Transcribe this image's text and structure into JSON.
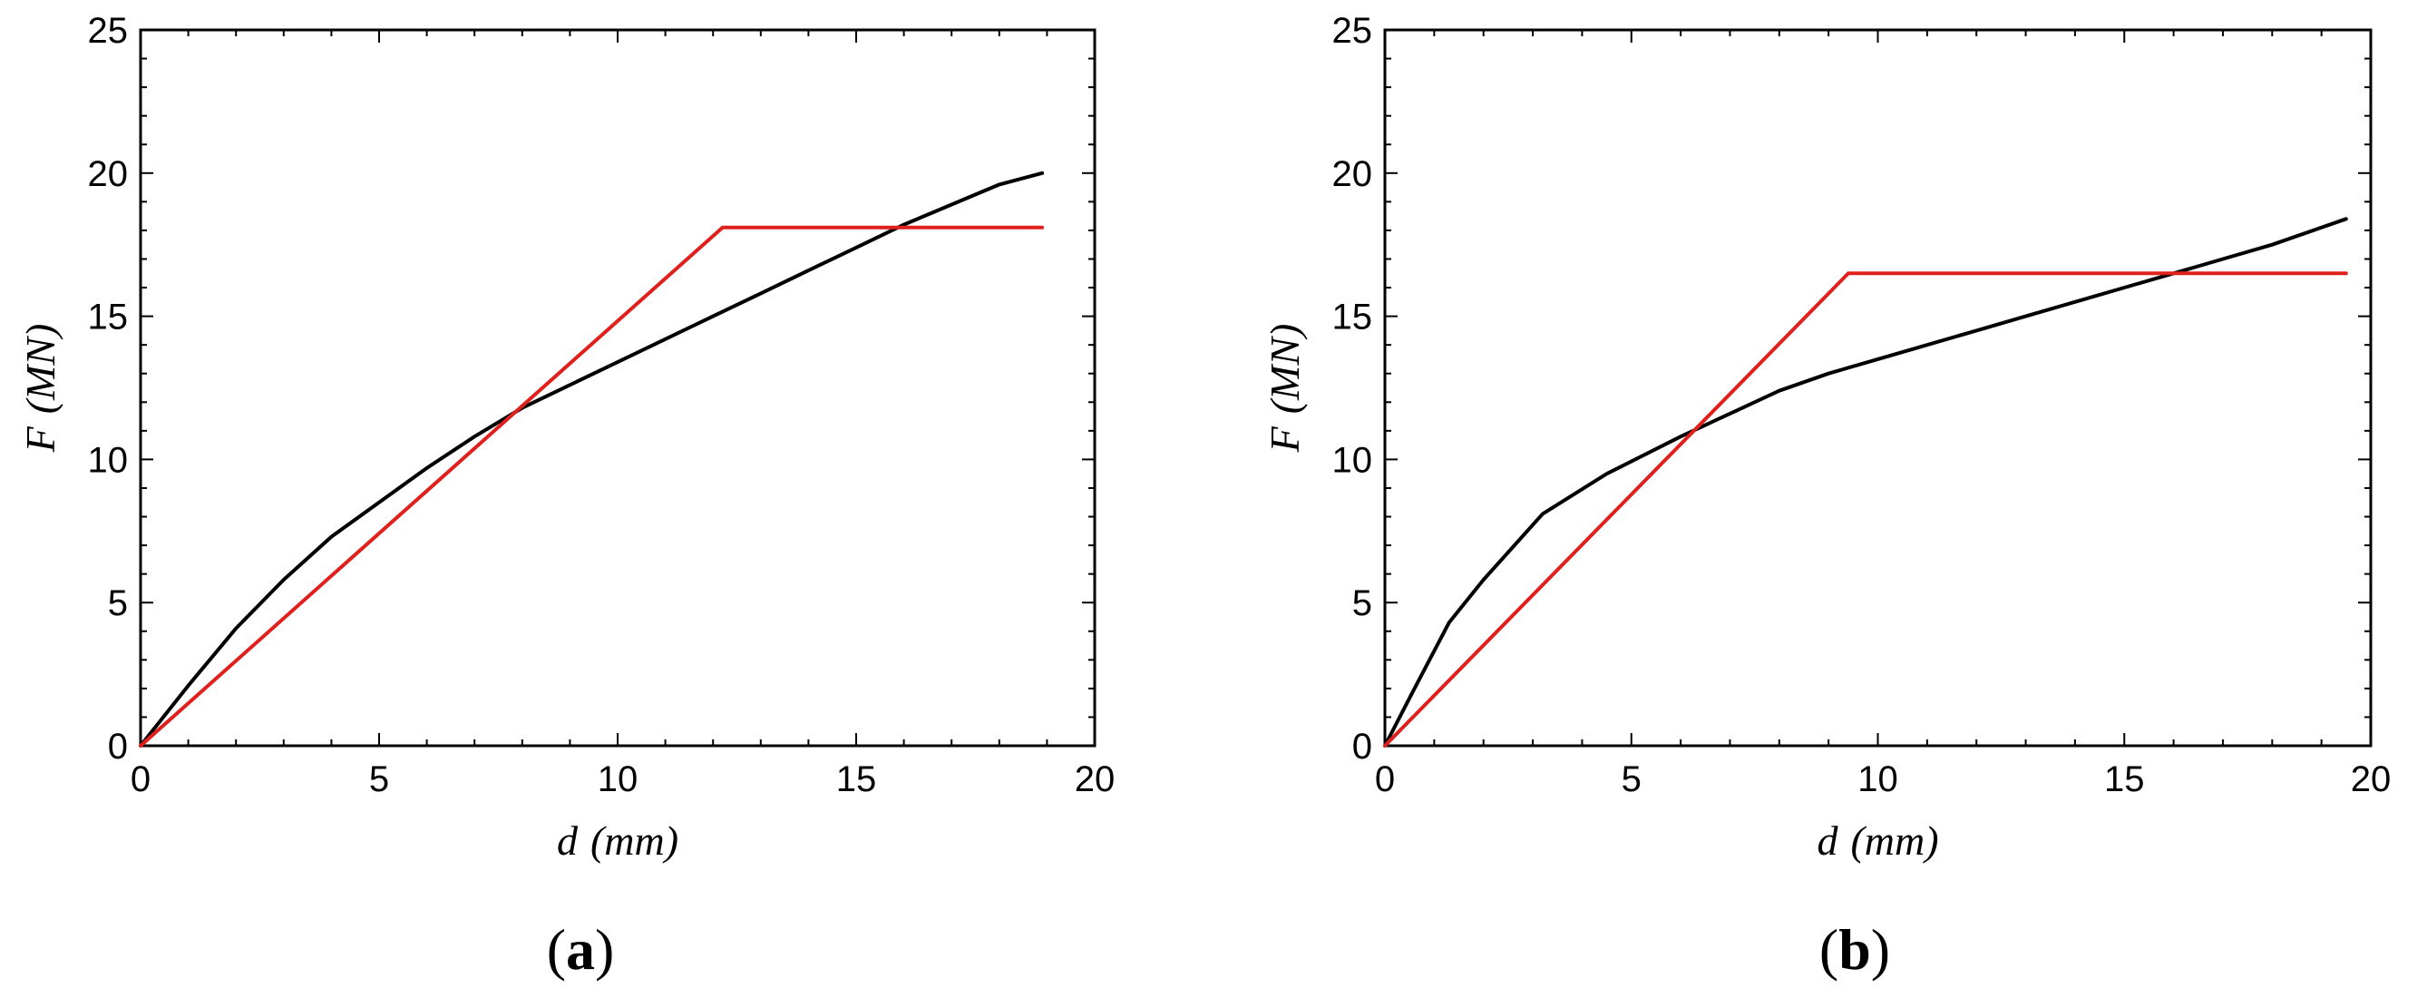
{
  "chart_data": [
    {
      "type": "line",
      "panel_label": {
        "open": "(",
        "letter": "a",
        "close": ")"
      },
      "xlabel": {
        "var": "d",
        "unit": "(mm)"
      },
      "ylabel": {
        "var": "F",
        "unit": "(MN)"
      },
      "xlim": [
        0,
        20
      ],
      "ylim": [
        0,
        25
      ],
      "xticks": [
        0,
        5,
        10,
        15,
        20
      ],
      "yticks": [
        0,
        5,
        10,
        15,
        20,
        25
      ],
      "grid": false,
      "series": [
        {
          "color": "#000000",
          "x": [
            0,
            1,
            2,
            3,
            4,
            5,
            6,
            7,
            8,
            9,
            10,
            11,
            12,
            13,
            14,
            15,
            16,
            17,
            18,
            18.9
          ],
          "y": [
            0,
            2.1,
            4.1,
            5.8,
            7.3,
            8.5,
            9.7,
            10.8,
            11.8,
            12.6,
            13.4,
            14.2,
            15.0,
            15.8,
            16.6,
            17.4,
            18.2,
            18.9,
            19.6,
            20.0
          ]
        },
        {
          "color": "#e0201c",
          "x": [
            0,
            12.2,
            18.9
          ],
          "y": [
            0,
            18.1,
            18.1
          ]
        }
      ]
    },
    {
      "type": "line",
      "panel_label": {
        "open": "(",
        "letter": "b",
        "close": ")"
      },
      "xlabel": {
        "var": "d",
        "unit": "(mm)"
      },
      "ylabel": {
        "var": "F",
        "unit": "(MN)"
      },
      "xlim": [
        0,
        20
      ],
      "ylim": [
        0,
        25
      ],
      "xticks": [
        0,
        5,
        10,
        15,
        20
      ],
      "yticks": [
        0,
        5,
        10,
        15,
        20,
        25
      ],
      "grid": false,
      "series": [
        {
          "color": "#000000",
          "x": [
            0,
            0.6,
            1.3,
            2,
            3.2,
            4.5,
            6,
            7,
            8,
            9,
            10,
            11,
            12,
            13,
            14,
            15,
            16,
            17,
            18,
            19.5
          ],
          "y": [
            0,
            2.0,
            4.3,
            5.8,
            8.1,
            9.5,
            10.8,
            11.6,
            12.4,
            13.0,
            13.5,
            14.0,
            14.5,
            15.0,
            15.5,
            16.0,
            16.5,
            17.0,
            17.5,
            18.4
          ]
        },
        {
          "color": "#e0201c",
          "x": [
            0,
            9.4,
            19.5
          ],
          "y": [
            0,
            16.5,
            16.5
          ]
        }
      ]
    }
  ]
}
